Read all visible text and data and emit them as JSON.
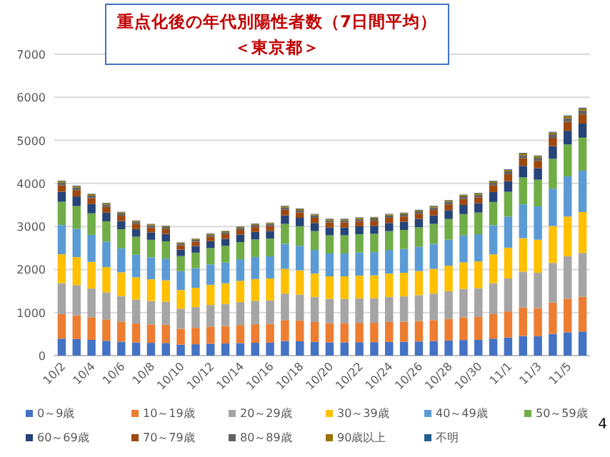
{
  "chart_data": {
    "type": "bar",
    "stacked": true,
    "title": "重点化後の年代別陽性者数（7日間平均）",
    "subtitle": "＜東京都＞",
    "annotations": [
      "4"
    ],
    "categories": [
      "10/2",
      null,
      "10/4",
      null,
      "10/6",
      null,
      "10/8",
      null,
      "10/10",
      null,
      "10/12",
      null,
      "10/14",
      null,
      "10/16",
      null,
      "10/18",
      null,
      "10/20",
      null,
      "10/22",
      null,
      "10/24",
      null,
      "10/26",
      null,
      "10/28",
      null,
      "10/30",
      null,
      "11/1",
      null,
      "11/3",
      null,
      "11/5",
      null
    ],
    "ylim": [
      0,
      7000
    ],
    "yticks": [
      0,
      1000,
      2000,
      3000,
      4000,
      5000,
      6000,
      7000
    ],
    "grid": "y",
    "legend": "bottom",
    "series": [
      {
        "name": "0～9歳",
        "color": "#4472c4",
        "values": [
          394,
          383,
          365,
          344,
          324,
          305,
          297,
          293,
          255,
          264,
          275,
          281,
          291,
          298,
          300,
          338,
          332,
          319,
          308,
          308,
          311,
          312,
          319,
          322,
          329,
          338,
          350,
          363,
          367,
          394,
          420,
          457,
          451,
          504,
          541,
          559
        ]
      },
      {
        "name": "10～19歳",
        "color": "#ed7d31",
        "values": [
          569,
          553,
          526,
          497,
          468,
          440,
          428,
          423,
          368,
          381,
          398,
          406,
          420,
          430,
          433,
          487,
          479,
          461,
          445,
          445,
          449,
          451,
          461,
          465,
          475,
          487,
          505,
          524,
          529,
          568,
          606,
          659,
          651,
          728,
          781,
          806
        ]
      },
      {
        "name": "20～29歳",
        "color": "#a5a5a5",
        "values": [
          720,
          699,
          666,
          628,
          591,
          556,
          542,
          535,
          466,
          481,
          503,
          513,
          531,
          543,
          547,
          616,
          605,
          582,
          563,
          563,
          568,
          570,
          582,
          588,
          600,
          616,
          639,
          662,
          669,
          719,
          766,
          834,
          823,
          920,
          988,
          1020
        ]
      },
      {
        "name": "30～39歳",
        "color": "#ffc000",
        "values": [
          671,
          652,
          620,
          586,
          551,
          518,
          505,
          498,
          434,
          449,
          469,
          479,
          495,
          507,
          510,
          574,
          564,
          543,
          525,
          525,
          530,
          531,
          543,
          548,
          559,
          574,
          596,
          617,
          624,
          670,
          714,
          777,
          767,
          858,
          921,
          950
        ]
      },
      {
        "name": "40～49歳",
        "color": "#5b9bd5",
        "values": [
          679,
          660,
          628,
          593,
          558,
          524,
          511,
          504,
          439,
          454,
          474,
          484,
          501,
          513,
          516,
          581,
          571,
          549,
          531,
          531,
          536,
          538,
          549,
          554,
          566,
          581,
          603,
          625,
          631,
          678,
          723,
          787,
          777,
          868,
          932,
          962
        ]
      },
      {
        "name": "50～59歳",
        "color": "#70ad47",
        "values": [
          541,
          525,
          500,
          472,
          444,
          418,
          407,
          402,
          350,
          362,
          378,
          386,
          399,
          408,
          411,
          463,
          455,
          438,
          423,
          423,
          427,
          428,
          438,
          442,
          451,
          463,
          480,
          497,
          503,
          540,
          576,
          626,
          618,
          692,
          742,
          766
        ]
      },
      {
        "name": "60～69歳",
        "color": "#264478",
        "values": [
          232,
          225,
          214,
          202,
          190,
          179,
          174,
          172,
          150,
          155,
          162,
          165,
          171,
          175,
          176,
          198,
          195,
          188,
          181,
          181,
          183,
          184,
          188,
          189,
          193,
          198,
          206,
          213,
          215,
          231,
          247,
          268,
          265,
          296,
          318,
          328
        ]
      },
      {
        "name": "70～79歳",
        "color": "#9e480e",
        "values": [
          150,
          146,
          139,
          131,
          124,
          116,
          113,
          112,
          97,
          101,
          105,
          107,
          111,
          114,
          114,
          129,
          127,
          122,
          118,
          118,
          119,
          119,
          122,
          123,
          125,
          129,
          134,
          138,
          140,
          150,
          160,
          174,
          172,
          192,
          206,
          213
        ]
      },
      {
        "name": "80～89歳",
        "color": "#636363",
        "values": [
          65,
          63,
          60,
          57,
          53,
          50,
          49,
          48,
          42,
          44,
          45,
          46,
          48,
          49,
          49,
          56,
          55,
          53,
          51,
          51,
          51,
          52,
          53,
          53,
          54,
          56,
          58,
          60,
          60,
          65,
          69,
          75,
          74,
          83,
          89,
          92
        ]
      },
      {
        "name": "90歳以上",
        "color": "#997300",
        "values": [
          33,
          32,
          30,
          28,
          27,
          25,
          24,
          24,
          21,
          22,
          23,
          23,
          24,
          25,
          25,
          28,
          27,
          26,
          25,
          25,
          26,
          26,
          26,
          27,
          27,
          28,
          29,
          30,
          30,
          32,
          35,
          38,
          37,
          42,
          45,
          46
        ]
      },
      {
        "name": "不明",
        "color": "#255e91",
        "values": [
          12,
          12,
          11,
          11,
          10,
          9,
          9,
          9,
          8,
          8,
          9,
          9,
          9,
          9,
          9,
          10,
          10,
          10,
          10,
          10,
          10,
          10,
          10,
          10,
          10,
          10,
          11,
          11,
          11,
          12,
          13,
          14,
          14,
          16,
          17,
          17
        ]
      }
    ]
  }
}
